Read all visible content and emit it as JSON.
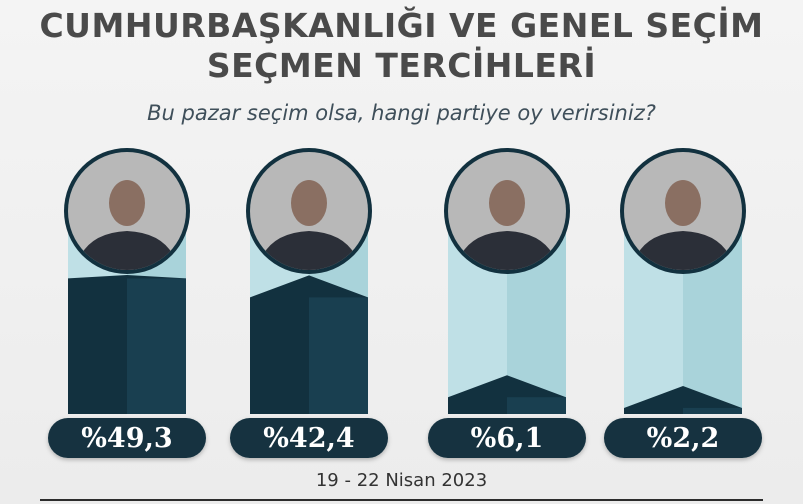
{
  "title_lines": [
    "CUMHURBAŞKANLIĞI VE GENEL SEÇİM",
    "SEÇMEN TERCİHLERİ"
  ],
  "subtitle": "Bu pazar seçim olsa, hangi partiye oy verirsiniz?",
  "date": "19 - 22 Nisan 2023",
  "colors": {
    "dark_navy": "#12313f",
    "mid_navy": "#1f4a5e",
    "column_light": "#bfe0e6",
    "column_light_side": "#a9d3da",
    "label_text": "#ffffff"
  },
  "chart_data": {
    "type": "bar",
    "categories": [
      "",
      "",
      "",
      ""
    ],
    "values": [
      49.3,
      42.4,
      6.1,
      2.2
    ],
    "value_labels": [
      "%49,3",
      "%42,4",
      "%6,1",
      "%2,2"
    ],
    "ylim": [
      0,
      60
    ],
    "title": "CUMHURBAŞKANLIĞI VE GENEL SEÇİM SEÇMEN TERCİHLERİ",
    "xlabel": "",
    "ylabel": ""
  }
}
